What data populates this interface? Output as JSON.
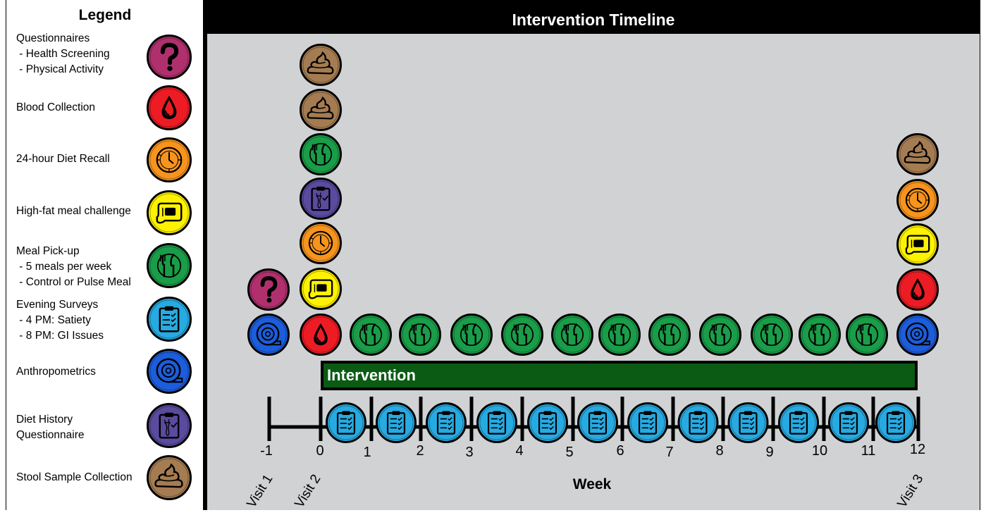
{
  "legend": {
    "title": "Legend",
    "items": [
      {
        "lines": [
          "Questionnaires",
          " - Health Screening",
          " - Physical Activity"
        ],
        "icon": "question-icon"
      },
      {
        "lines": [
          "Blood Collection"
        ],
        "icon": "blood-drop-icon"
      },
      {
        "lines": [
          "24-hour Diet Recall"
        ],
        "icon": "clock-icon"
      },
      {
        "lines": [
          "High-fat meal challenge"
        ],
        "icon": "meal-tray-icon"
      },
      {
        "lines": [
          "Meal Pick-up",
          " - 5 meals per week",
          " - Control or Pulse Meal"
        ],
        "icon": "fork-knife-icon"
      },
      {
        "lines": [
          "Evening Surveys",
          " - 4 PM: Satiety",
          " - 8 PM: GI Issues"
        ],
        "icon": "clipboard-icon"
      },
      {
        "lines": [
          "Anthropometrics"
        ],
        "icon": "tape-measure-icon"
      },
      {
        "lines": [
          "Diet History",
          "Questionnaire"
        ],
        "icon": "diet-history-icon"
      },
      {
        "lines": [
          "Stool Sample Collection"
        ],
        "icon": "stool-icon"
      }
    ]
  },
  "timeline": {
    "title": "Intervention Timeline",
    "bar_label": "Intervention",
    "axis_label": "Week",
    "week_labels": [
      "-1",
      "0",
      "1",
      "2",
      "3",
      "4",
      "5",
      "6",
      "7",
      "8",
      "9",
      "10",
      "11",
      "12"
    ],
    "visits": [
      "Visit 1",
      "Visit 2",
      "Visit 3"
    ]
  },
  "colors": {
    "question": "#b0306e",
    "blood": "#ed1c24",
    "clock": "#f7941d",
    "meal": "#fff200",
    "fork": "#1a9d49",
    "survey": "#27aae1",
    "tape": "#1c5ddb",
    "diet": "#5b4b9f",
    "stool": "#a57c52",
    "intervention_bar": "#0b5b14",
    "panel": "#d1d2d4"
  }
}
